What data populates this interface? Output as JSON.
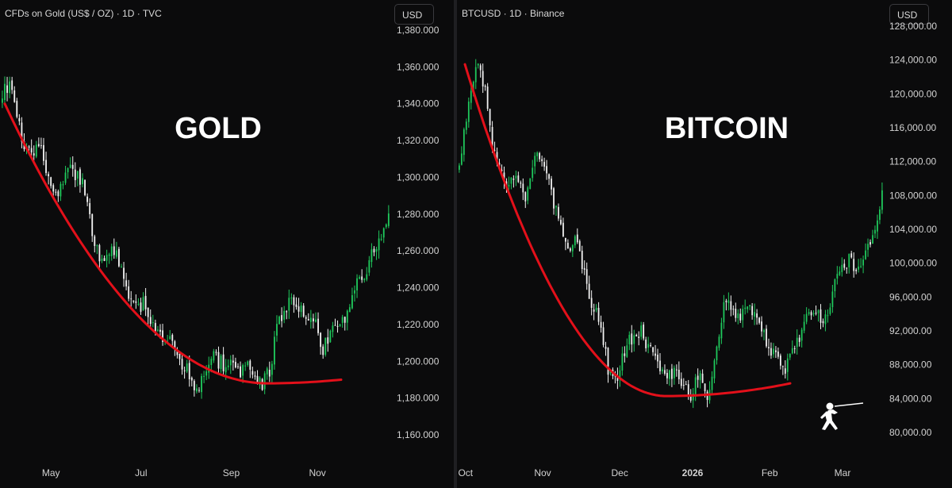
{
  "chart_data": [
    {
      "type": "candlestick",
      "title": "CFDs on Gold (US$ / OZ) · 1D · TVC",
      "annotation": "GOLD",
      "currency_button": "USD",
      "ylim": [
        1150,
        1385
      ],
      "y_ticks": [
        {
          "value": 1380,
          "label": "1,380.000"
        },
        {
          "value": 1360,
          "label": "1,360.000"
        },
        {
          "value": 1340,
          "label": "1,340.000"
        },
        {
          "value": 1320,
          "label": "1,320.000"
        },
        {
          "value": 1300,
          "label": "1,300.000"
        },
        {
          "value": 1280,
          "label": "1,280.000"
        },
        {
          "value": 1260,
          "label": "1,260.000"
        },
        {
          "value": 1240,
          "label": "1,240.000"
        },
        {
          "value": 1220,
          "label": "1,220.000"
        },
        {
          "value": 1200,
          "label": "1,200.000"
        },
        {
          "value": 1180,
          "label": "1,180.000"
        },
        {
          "value": 1160,
          "label": "1,160.000"
        }
      ],
      "x_ticks": [
        {
          "label": "May",
          "bold": false
        },
        {
          "label": "Jul",
          "bold": false
        },
        {
          "label": "Sep",
          "bold": false
        },
        {
          "label": "Nov",
          "bold": false
        }
      ],
      "x_tick_positions": [
        0.13,
        0.36,
        0.59,
        0.81
      ],
      "trend_curve": {
        "color": "#e3101a",
        "start": 1340,
        "bottom": 1188,
        "bottom_at": 0.78,
        "end": 1190
      },
      "close_path": [
        1345,
        1352,
        1330,
        1318,
        1312,
        1322,
        1300,
        1288,
        1296,
        1305,
        1300,
        1296,
        1270,
        1258,
        1255,
        1262,
        1248,
        1238,
        1228,
        1232,
        1222,
        1215,
        1212,
        1210,
        1200,
        1195,
        1180,
        1190,
        1205,
        1200,
        1198,
        1202,
        1195,
        1200,
        1190,
        1188,
        1195,
        1220,
        1228,
        1235,
        1230,
        1225,
        1222,
        1205,
        1215,
        1218,
        1222,
        1232,
        1245,
        1250,
        1260,
        1270,
        1278
      ],
      "colors": {
        "up": "#1fc95c",
        "down": "#f2f2f2",
        "trend": "#e3101a"
      }
    },
    {
      "type": "candlestick",
      "title": "BTCUSD · 1D · Binance",
      "annotation": "BITCOIN",
      "currency_button": "USD",
      "ylim": [
        78500,
        129000
      ],
      "y_ticks": [
        {
          "value": 128000,
          "label": "128,000.00"
        },
        {
          "value": 124000,
          "label": "124,000.00"
        },
        {
          "value": 120000,
          "label": "120,000.00"
        },
        {
          "value": 116000,
          "label": "116,000.00"
        },
        {
          "value": 112000,
          "label": "112,000.00"
        },
        {
          "value": 108000,
          "label": "108,000.00"
        },
        {
          "value": 104000,
          "label": "104,000.00"
        },
        {
          "value": 100000,
          "label": "100,000.00"
        },
        {
          "value": 96000,
          "label": "96,000.00"
        },
        {
          "value": 92000,
          "label": "92,000.00"
        },
        {
          "value": 88000,
          "label": "88,000.00"
        },
        {
          "value": 84000,
          "label": "84,000.00"
        },
        {
          "value": 80000,
          "label": "80,000.00"
        }
      ],
      "x_ticks": [
        {
          "label": "Oct",
          "bold": false
        },
        {
          "label": "Nov",
          "bold": false
        },
        {
          "label": "Dec",
          "bold": false
        },
        {
          "label": "2026",
          "bold": true
        },
        {
          "label": "Feb",
          "bold": false
        },
        {
          "label": "Mar",
          "bold": false
        }
      ],
      "x_tick_positions": [
        0.02,
        0.2,
        0.38,
        0.55,
        0.73,
        0.9
      ],
      "trend_curve": {
        "color": "#e3101a",
        "start": 123500,
        "bottom": 84300,
        "bottom_at": 0.62,
        "end": 85800
      },
      "close_path": [
        112000,
        118000,
        124000,
        121000,
        114000,
        111000,
        109500,
        110500,
        107000,
        113000,
        112000,
        109000,
        104500,
        101500,
        103000,
        99500,
        95000,
        93000,
        87000,
        86500,
        90000,
        91500,
        92000,
        89500,
        88500,
        86500,
        87000,
        85500,
        84500,
        87000,
        84500,
        90000,
        96000,
        94500,
        93500,
        95000,
        92500,
        91000,
        89000,
        87000,
        89000,
        91000,
        93500,
        94500,
        93000,
        96500,
        99000,
        100500,
        99000,
        101000,
        104000,
        108000
      ],
      "colors": {
        "up": "#1fc95c",
        "down": "#f2f2f2",
        "trend": "#e3101a"
      }
    }
  ]
}
